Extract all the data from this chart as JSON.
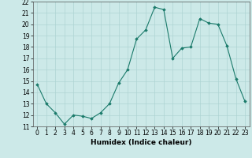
{
  "x": [
    0,
    1,
    2,
    3,
    4,
    5,
    6,
    7,
    8,
    9,
    10,
    11,
    12,
    13,
    14,
    15,
    16,
    17,
    18,
    19,
    20,
    21,
    22,
    23
  ],
  "y": [
    14.7,
    13.0,
    12.2,
    11.2,
    12.0,
    11.9,
    11.7,
    12.2,
    13.0,
    14.8,
    16.0,
    18.7,
    19.5,
    21.5,
    21.3,
    17.0,
    17.9,
    18.0,
    20.5,
    20.1,
    20.0,
    18.1,
    15.2,
    13.2
  ],
  "line_color": "#1a7a6a",
  "marker": "D",
  "marker_size": 1.8,
  "bg_color": "#cce9e8",
  "grid_color": "#aed4d3",
  "xlabel": "Humidex (Indice chaleur)",
  "xlim": [
    -0.5,
    23.5
  ],
  "ylim": [
    11,
    22
  ],
  "yticks": [
    11,
    12,
    13,
    14,
    15,
    16,
    17,
    18,
    19,
    20,
    21,
    22
  ],
  "xticks": [
    0,
    1,
    2,
    3,
    4,
    5,
    6,
    7,
    8,
    9,
    10,
    11,
    12,
    13,
    14,
    15,
    16,
    17,
    18,
    19,
    20,
    21,
    22,
    23
  ],
  "label_fontsize": 6.5,
  "tick_fontsize": 5.5
}
